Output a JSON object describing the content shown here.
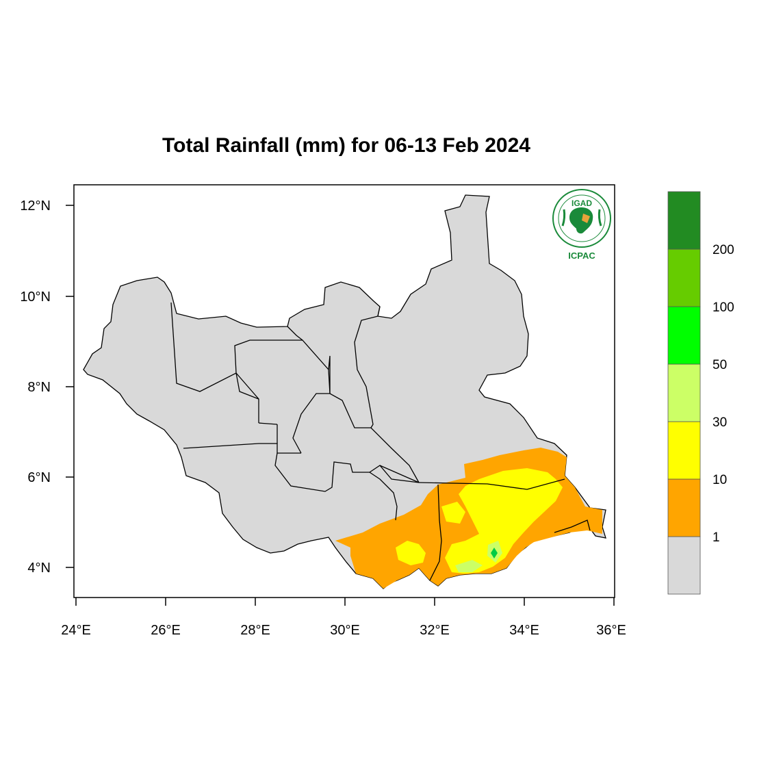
{
  "map": {
    "title": "Total Rainfall (mm) for 06-13 Feb 2024",
    "x_ticks": [
      "24°E",
      "26°E",
      "28°E",
      "30°E",
      "32°E",
      "34°E",
      "36°E"
    ],
    "y_ticks": [
      "12°N",
      "10°N",
      "8°N",
      "6°N",
      "4°N"
    ],
    "lon_range": [
      24,
      36
    ],
    "lat_range": [
      3.3,
      12.5
    ],
    "region": "South Sudan",
    "base_fill": "#d9d9d9"
  },
  "legend": {
    "labels": [
      "1",
      "10",
      "30",
      "50",
      "100",
      "200"
    ],
    "bins": [
      {
        "range": "< 1",
        "color": "#d9d9d9"
      },
      {
        "range": "1-10",
        "color": "#ffa500"
      },
      {
        "range": "10-30",
        "color": "#ffff00"
      },
      {
        "range": "30-50",
        "color": "#ccff66"
      },
      {
        "range": "50-100",
        "color": "#00ff00"
      },
      {
        "range": "100-200",
        "color": "#66cc00"
      },
      {
        "range": "> 200",
        "color": "#228b22"
      }
    ]
  },
  "logo": {
    "top_text": "IGAD",
    "bottom_text": "ICPAC"
  }
}
